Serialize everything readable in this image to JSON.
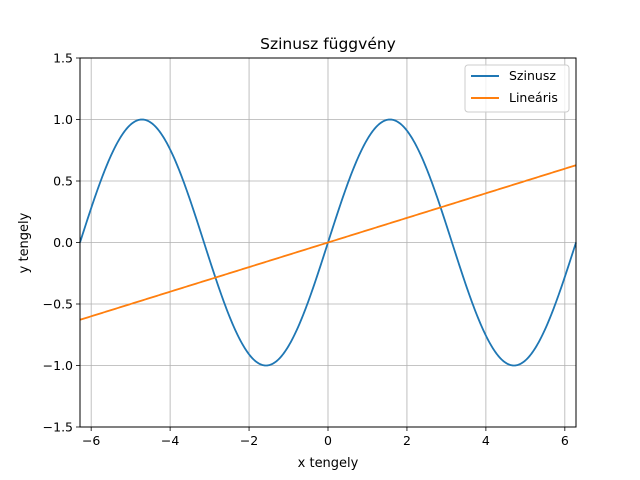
{
  "chart_data": {
    "type": "line",
    "title": "Szinusz függvény",
    "xlabel": "x tengely",
    "ylabel": "y tengely",
    "xlim": [
      -6.2832,
      6.2832
    ],
    "ylim": [
      -1.5,
      1.5
    ],
    "xticks": [
      -6,
      -4,
      -2,
      0,
      2,
      4,
      6
    ],
    "yticks": [
      -1.5,
      -1.0,
      -0.5,
      0.0,
      0.5,
      1.0,
      1.5
    ],
    "xtick_labels": [
      "−6",
      "−4",
      "−2",
      "0",
      "2",
      "4",
      "6"
    ],
    "ytick_labels": [
      "−1.5",
      "−1.0",
      "−0.5",
      "0.0",
      "0.5",
      "1.0",
      "1.5"
    ],
    "grid": true,
    "legend_position": "top-right",
    "series": [
      {
        "name": "Szinusz",
        "color": "#1f77b4",
        "function": "sin(x)",
        "x_range": [
          -6.2832,
          6.2832
        ]
      },
      {
        "name": "Lineáris",
        "color": "#ff7f0e",
        "function": "0.1*x",
        "x_range": [
          -6.2832,
          6.2832
        ]
      }
    ]
  }
}
